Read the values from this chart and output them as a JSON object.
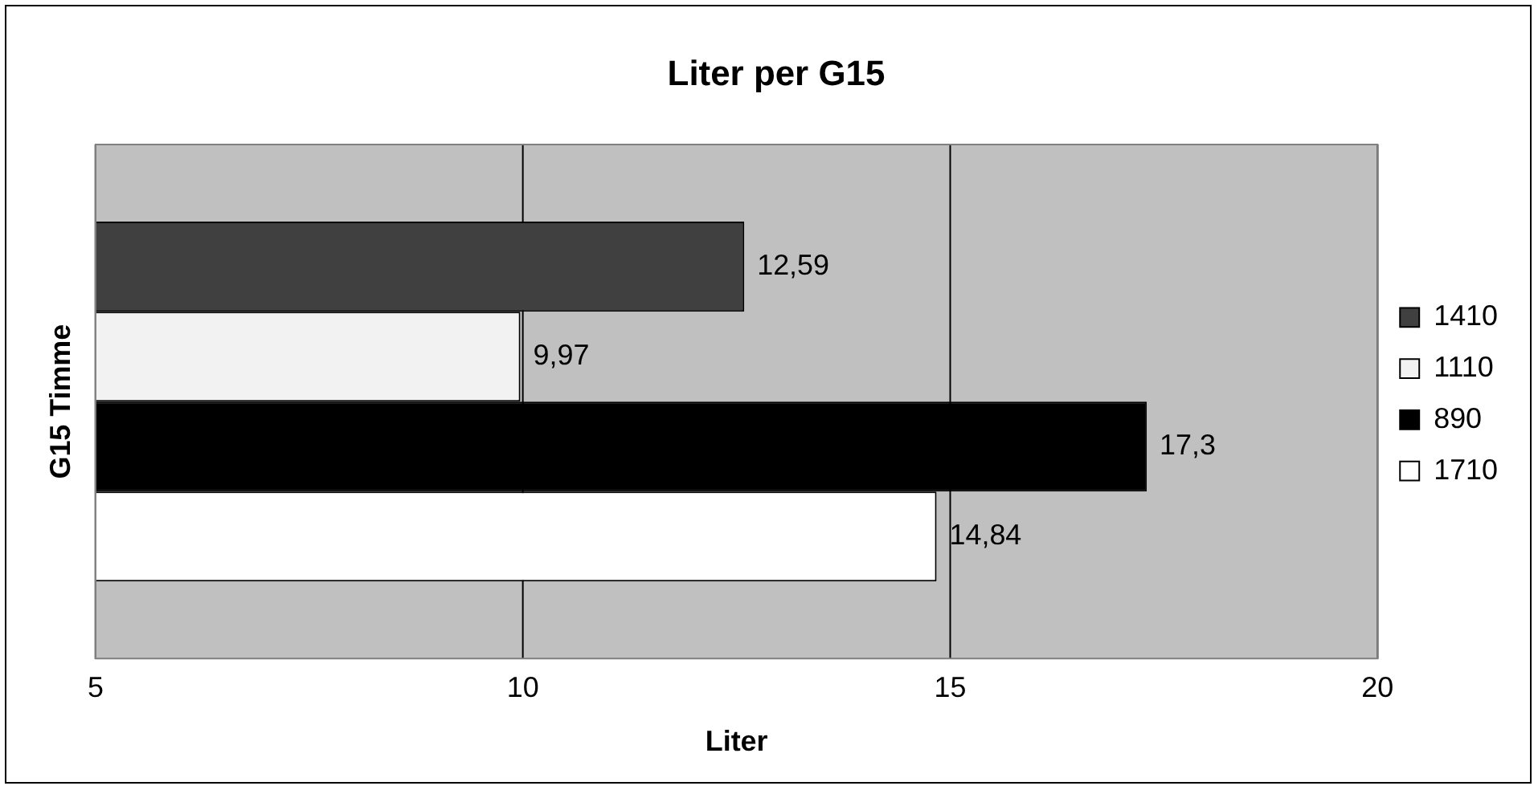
{
  "chart_data": {
    "type": "bar",
    "orientation": "horizontal",
    "title": "Liter per G15",
    "xlabel": "Liter",
    "ylabel": "G15 Timme",
    "categories": [
      null
    ],
    "series": [
      {
        "name": "1410",
        "color": "#404040",
        "values": [
          12.59
        ],
        "value_labels": [
          "12,59"
        ]
      },
      {
        "name": "1110",
        "color": "#f2f2f2",
        "values": [
          9.97
        ],
        "value_labels": [
          "9,97"
        ]
      },
      {
        "name": "890",
        "color": "#000000",
        "values": [
          17.3
        ],
        "value_labels": [
          "17,3"
        ]
      },
      {
        "name": "1710",
        "color": "#ffffff",
        "values": [
          14.84
        ],
        "value_labels": [
          "14,84"
        ]
      }
    ],
    "xlim": [
      5,
      20
    ],
    "xticks": [
      5,
      10,
      15,
      20
    ],
    "grid": "x",
    "legend": "right"
  }
}
